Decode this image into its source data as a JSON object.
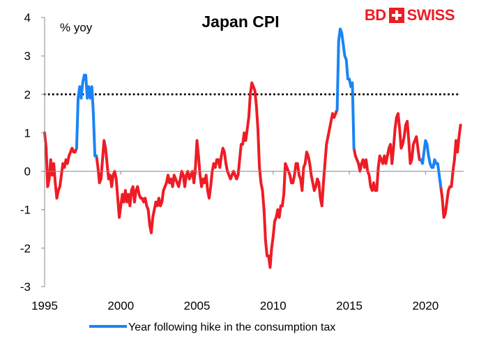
{
  "chart_data": {
    "type": "line",
    "title": "Japan CPI",
    "ylabel": "% yoy",
    "xlabel": "",
    "ylim": [
      -3,
      4
    ],
    "xlim": [
      1995,
      2022.5
    ],
    "yticks": [
      -3,
      -2,
      -1,
      0,
      1,
      2,
      3,
      4
    ],
    "xticks": [
      1995,
      2000,
      2005,
      2010,
      2015,
      2020
    ],
    "reference_line": {
      "value": 2,
      "style": "dotted"
    },
    "colors": {
      "main": "#ee1c25",
      "highlight": "#1a84f5"
    },
    "series": [
      {
        "name": "Japan CPI",
        "color": "#ee1c25",
        "points": [
          [
            1995.0,
            1.0
          ],
          [
            1995.1,
            0.6
          ],
          [
            1995.2,
            -0.4
          ],
          [
            1995.3,
            -0.2
          ],
          [
            1995.4,
            0.3
          ],
          [
            1995.5,
            -0.1
          ],
          [
            1995.6,
            0.2
          ],
          [
            1995.7,
            -0.3
          ],
          [
            1995.8,
            -0.7
          ],
          [
            1995.9,
            -0.5
          ],
          [
            1996.0,
            -0.4
          ],
          [
            1996.1,
            -0.1
          ],
          [
            1996.2,
            0.2
          ],
          [
            1996.3,
            0.1
          ],
          [
            1996.4,
            0.3
          ],
          [
            1996.5,
            0.2
          ],
          [
            1996.6,
            0.4
          ],
          [
            1996.7,
            0.5
          ],
          [
            1996.8,
            0.6
          ],
          [
            1996.9,
            0.5
          ],
          [
            1997.0,
            0.5
          ],
          [
            1997.1,
            0.6
          ],
          [
            1998.4,
            0.4
          ],
          [
            1998.5,
            0.1
          ],
          [
            1998.6,
            -0.3
          ],
          [
            1998.7,
            -0.2
          ],
          [
            1998.8,
            0.3
          ],
          [
            1998.9,
            0.8
          ],
          [
            1999.0,
            0.6
          ],
          [
            1999.1,
            0.2
          ],
          [
            1999.2,
            -0.2
          ],
          [
            1999.3,
            -0.1
          ],
          [
            1999.4,
            -0.4
          ],
          [
            1999.5,
            -0.1
          ],
          [
            1999.6,
            0.0
          ],
          [
            1999.7,
            -0.2
          ],
          [
            1999.8,
            -0.7
          ],
          [
            1999.9,
            -1.2
          ],
          [
            2000.0,
            -0.9
          ],
          [
            2000.1,
            -0.6
          ],
          [
            2000.2,
            -0.8
          ],
          [
            2000.3,
            -0.5
          ],
          [
            2000.4,
            -0.8
          ],
          [
            2000.5,
            -0.6
          ],
          [
            2000.6,
            -0.9
          ],
          [
            2000.7,
            -0.5
          ],
          [
            2000.8,
            -0.4
          ],
          [
            2000.9,
            -0.8
          ],
          [
            2001.0,
            -0.5
          ],
          [
            2001.1,
            -0.4
          ],
          [
            2001.2,
            -0.6
          ],
          [
            2001.3,
            -0.7
          ],
          [
            2001.4,
            -0.7
          ],
          [
            2001.5,
            -0.8
          ],
          [
            2001.6,
            -0.7
          ],
          [
            2001.7,
            -0.9
          ],
          [
            2001.8,
            -1.0
          ],
          [
            2001.9,
            -1.4
          ],
          [
            2002.0,
            -1.6
          ],
          [
            2002.1,
            -1.2
          ],
          [
            2002.2,
            -1.0
          ],
          [
            2002.3,
            -0.8
          ],
          [
            2002.4,
            -0.9
          ],
          [
            2002.5,
            -0.7
          ],
          [
            2002.6,
            -0.9
          ],
          [
            2002.7,
            -0.8
          ],
          [
            2002.8,
            -0.5
          ],
          [
            2002.9,
            -0.4
          ],
          [
            2003.0,
            -0.3
          ],
          [
            2003.1,
            -0.1
          ],
          [
            2003.2,
            -0.3
          ],
          [
            2003.3,
            -0.2
          ],
          [
            2003.4,
            -0.4
          ],
          [
            2003.5,
            -0.1
          ],
          [
            2003.6,
            -0.2
          ],
          [
            2003.7,
            -0.3
          ],
          [
            2003.8,
            -0.4
          ],
          [
            2003.9,
            -0.2
          ],
          [
            2004.0,
            0.0
          ],
          [
            2004.1,
            -0.1
          ],
          [
            2004.2,
            -0.4
          ],
          [
            2004.3,
            -0.1
          ],
          [
            2004.4,
            0.0
          ],
          [
            2004.5,
            -0.2
          ],
          [
            2004.6,
            -0.1
          ],
          [
            2004.7,
            0.0
          ],
          [
            2004.8,
            -0.3
          ],
          [
            2004.9,
            0.1
          ],
          [
            2005.0,
            0.8
          ],
          [
            2005.1,
            0.4
          ],
          [
            2005.2,
            -0.1
          ],
          [
            2005.3,
            -0.4
          ],
          [
            2005.4,
            -0.2
          ],
          [
            2005.5,
            -0.3
          ],
          [
            2005.6,
            -0.1
          ],
          [
            2005.7,
            -0.5
          ],
          [
            2005.8,
            -0.7
          ],
          [
            2005.9,
            -0.4
          ],
          [
            2006.0,
            0.0
          ],
          [
            2006.1,
            0.2
          ],
          [
            2006.2,
            0.1
          ],
          [
            2006.3,
            0.3
          ],
          [
            2006.4,
            0.3
          ],
          [
            2006.5,
            0.1
          ],
          [
            2006.6,
            0.4
          ],
          [
            2006.7,
            0.6
          ],
          [
            2006.8,
            0.5
          ],
          [
            2006.9,
            0.2
          ],
          [
            2007.0,
            0.0
          ],
          [
            2007.1,
            -0.1
          ],
          [
            2007.2,
            -0.2
          ],
          [
            2007.3,
            -0.1
          ],
          [
            2007.4,
            0.0
          ],
          [
            2007.5,
            -0.1
          ],
          [
            2007.6,
            -0.2
          ],
          [
            2007.7,
            -0.1
          ],
          [
            2007.8,
            0.3
          ],
          [
            2007.9,
            0.7
          ],
          [
            2008.0,
            0.7
          ],
          [
            2008.1,
            1.0
          ],
          [
            2008.2,
            0.8
          ],
          [
            2008.3,
            1.1
          ],
          [
            2008.4,
            1.4
          ],
          [
            2008.5,
            2.0
          ],
          [
            2008.6,
            2.3
          ],
          [
            2008.7,
            2.2
          ],
          [
            2008.8,
            2.1
          ],
          [
            2008.9,
            1.7
          ],
          [
            2009.0,
            1.1
          ],
          [
            2009.1,
            0.1
          ],
          [
            2009.2,
            -0.3
          ],
          [
            2009.3,
            -0.5
          ],
          [
            2009.4,
            -1.0
          ],
          [
            2009.5,
            -1.8
          ],
          [
            2009.6,
            -2.2
          ],
          [
            2009.7,
            -2.2
          ],
          [
            2009.8,
            -2.5
          ],
          [
            2009.9,
            -2.0
          ],
          [
            2010.0,
            -1.7
          ],
          [
            2010.1,
            -1.3
          ],
          [
            2010.2,
            -1.2
          ],
          [
            2010.3,
            -1.0
          ],
          [
            2010.4,
            -1.2
          ],
          [
            2010.5,
            -0.9
          ],
          [
            2010.6,
            -0.9
          ],
          [
            2010.7,
            -0.6
          ],
          [
            2010.8,
            0.2
          ],
          [
            2010.9,
            0.1
          ],
          [
            2011.0,
            0.0
          ],
          [
            2011.1,
            -0.1
          ],
          [
            2011.2,
            -0.3
          ],
          [
            2011.3,
            -0.3
          ],
          [
            2011.4,
            -0.1
          ],
          [
            2011.5,
            0.2
          ],
          [
            2011.6,
            0.2
          ],
          [
            2011.7,
            -0.1
          ],
          [
            2011.8,
            -0.2
          ],
          [
            2011.9,
            -0.5
          ],
          [
            2012.0,
            0.1
          ],
          [
            2012.1,
            0.2
          ],
          [
            2012.2,
            0.5
          ],
          [
            2012.3,
            0.4
          ],
          [
            2012.4,
            0.2
          ],
          [
            2012.5,
            -0.1
          ],
          [
            2012.6,
            -0.3
          ],
          [
            2012.7,
            -0.5
          ],
          [
            2012.8,
            -0.4
          ],
          [
            2012.9,
            -0.2
          ],
          [
            2013.0,
            -0.3
          ],
          [
            2013.1,
            -0.7
          ],
          [
            2013.2,
            -0.9
          ],
          [
            2013.3,
            -0.3
          ],
          [
            2013.4,
            0.2
          ],
          [
            2013.5,
            0.7
          ],
          [
            2013.6,
            0.9
          ],
          [
            2013.7,
            1.1
          ],
          [
            2013.8,
            1.3
          ],
          [
            2013.9,
            1.5
          ],
          [
            2014.0,
            1.4
          ],
          [
            2014.1,
            1.5
          ],
          [
            2014.2,
            1.6
          ],
          [
            2015.3,
            0.6
          ],
          [
            2015.4,
            0.4
          ],
          [
            2015.5,
            0.3
          ],
          [
            2015.6,
            0.2
          ],
          [
            2015.7,
            0.0
          ],
          [
            2015.8,
            0.2
          ],
          [
            2015.9,
            0.3
          ],
          [
            2016.0,
            0.1
          ],
          [
            2016.1,
            0.3
          ],
          [
            2016.2,
            0.0
          ],
          [
            2016.3,
            -0.1
          ],
          [
            2016.4,
            -0.4
          ],
          [
            2016.5,
            -0.5
          ],
          [
            2016.6,
            -0.3
          ],
          [
            2016.7,
            -0.5
          ],
          [
            2016.8,
            -0.5
          ],
          [
            2016.9,
            0.1
          ],
          [
            2017.0,
            0.4
          ],
          [
            2017.1,
            0.3
          ],
          [
            2017.2,
            0.2
          ],
          [
            2017.3,
            0.4
          ],
          [
            2017.4,
            0.2
          ],
          [
            2017.5,
            0.4
          ],
          [
            2017.6,
            0.6
          ],
          [
            2017.7,
            0.7
          ],
          [
            2017.8,
            0.2
          ],
          [
            2017.9,
            0.6
          ],
          [
            2018.0,
            1.1
          ],
          [
            2018.1,
            1.4
          ],
          [
            2018.2,
            1.5
          ],
          [
            2018.3,
            1.1
          ],
          [
            2018.4,
            0.6
          ],
          [
            2018.5,
            0.7
          ],
          [
            2018.6,
            0.9
          ],
          [
            2018.7,
            1.2
          ],
          [
            2018.8,
            1.3
          ],
          [
            2018.9,
            0.8
          ],
          [
            2019.0,
            0.2
          ],
          [
            2019.1,
            0.3
          ],
          [
            2019.2,
            0.7
          ],
          [
            2019.3,
            0.8
          ],
          [
            2019.4,
            0.9
          ],
          [
            2019.5,
            0.6
          ],
          [
            2019.6,
            0.3
          ],
          [
            2019.7,
            0.3
          ],
          [
            2021.0,
            -0.4
          ],
          [
            2021.1,
            -0.7
          ],
          [
            2021.2,
            -1.2
          ],
          [
            2021.3,
            -1.1
          ],
          [
            2021.4,
            -0.8
          ],
          [
            2021.5,
            -0.5
          ],
          [
            2021.6,
            -0.4
          ],
          [
            2021.7,
            -0.4
          ],
          [
            2021.8,
            0.0
          ],
          [
            2021.9,
            0.3
          ],
          [
            2022.0,
            0.8
          ],
          [
            2022.1,
            0.5
          ],
          [
            2022.2,
            0.9
          ],
          [
            2022.3,
            1.2
          ]
        ]
      },
      {
        "name": "Year following hike in the consumption tax",
        "color": "#1a84f5",
        "points": [
          [
            1997.1,
            0.6
          ],
          [
            1997.2,
            1.9
          ],
          [
            1997.3,
            2.2
          ],
          [
            1997.4,
            1.9
          ],
          [
            1997.5,
            2.3
          ],
          [
            1997.6,
            2.5
          ],
          [
            1997.7,
            2.5
          ],
          [
            1997.8,
            1.9
          ],
          [
            1997.9,
            2.2
          ],
          [
            1998.0,
            1.9
          ],
          [
            1998.1,
            2.2
          ],
          [
            1998.2,
            1.5
          ],
          [
            1998.3,
            0.4
          ],
          [
            1998.4,
            0.4
          ],
          [
            2014.2,
            1.6
          ],
          [
            2014.3,
            3.4
          ],
          [
            2014.4,
            3.7
          ],
          [
            2014.5,
            3.6
          ],
          [
            2014.6,
            3.3
          ],
          [
            2014.7,
            3.0
          ],
          [
            2014.8,
            2.9
          ],
          [
            2014.9,
            2.4
          ],
          [
            2015.0,
            2.4
          ],
          [
            2015.1,
            2.2
          ],
          [
            2015.2,
            2.3
          ],
          [
            2015.3,
            0.6
          ],
          [
            2019.7,
            0.3
          ],
          [
            2019.8,
            0.2
          ],
          [
            2019.9,
            0.5
          ],
          [
            2020.0,
            0.8
          ],
          [
            2020.1,
            0.7
          ],
          [
            2020.2,
            0.4
          ],
          [
            2020.3,
            0.2
          ],
          [
            2020.4,
            0.1
          ],
          [
            2020.5,
            0.1
          ],
          [
            2020.6,
            0.3
          ],
          [
            2020.7,
            0.2
          ],
          [
            2020.8,
            0.2
          ],
          [
            2020.9,
            -0.1
          ],
          [
            2021.0,
            -0.4
          ]
        ]
      }
    ]
  },
  "legend": {
    "label": "Year following hike in the consumption tax"
  },
  "brand": {
    "bd": "BD",
    "swiss": "SWISS",
    "icon": "swiss-cross-icon"
  }
}
